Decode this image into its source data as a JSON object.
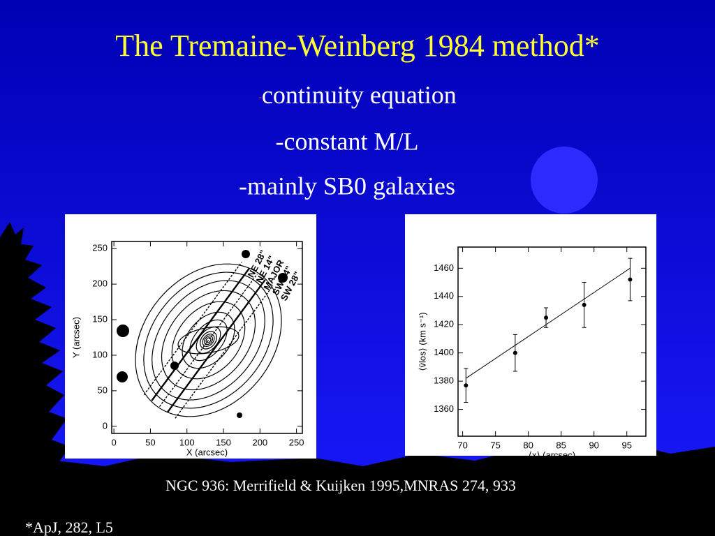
{
  "title": "The Tremaine-Weinberg 1984 method*",
  "bullets": [
    {
      "dash": "-",
      "text": "continuity equation"
    },
    {
      "text": "-constant M/L"
    },
    {
      "text": "-mainly SB0 galaxies"
    }
  ],
  "chart_data": [
    {
      "type": "contour",
      "xlabel": "X (arcsec)",
      "ylabel": "Y (arcsec)",
      "xlim": [
        -3,
        258
      ],
      "ylim": [
        -10,
        260
      ],
      "xticks": [
        0,
        50,
        100,
        150,
        200,
        250
      ],
      "yticks": [
        0,
        50,
        100,
        150,
        200,
        250
      ],
      "annotations": [
        "NE 28\"",
        "NE 14\"",
        "MAJOR",
        "SW 14\"",
        "SW 28\""
      ]
    },
    {
      "type": "scatter",
      "xlabel": "⟨x⟩ (arcsec)",
      "ylabel": "⟨v̄los⟩ (km s⁻¹)",
      "xlim": [
        69.3,
        97.9
      ],
      "ylim": [
        1341,
        1475
      ],
      "xticks": [
        70,
        75,
        80,
        85,
        90,
        95
      ],
      "yticks": [
        1360,
        1380,
        1400,
        1420,
        1440,
        1460
      ],
      "x": [
        70.5,
        78,
        82.7,
        88.5,
        95.5
      ],
      "values": [
        1377,
        1400,
        1425,
        1434,
        1452
      ],
      "errors": [
        12,
        13,
        7,
        16,
        15
      ],
      "fit": {
        "x": [
          70.5,
          95.5
        ],
        "values": [
          1382,
          1460
        ]
      },
      "color": "#000000"
    }
  ],
  "citation": "NGC 936: Merrifield & Kuijken 1995,MNRAS 274, 933",
  "footnote": "*ApJ, 282, L5"
}
